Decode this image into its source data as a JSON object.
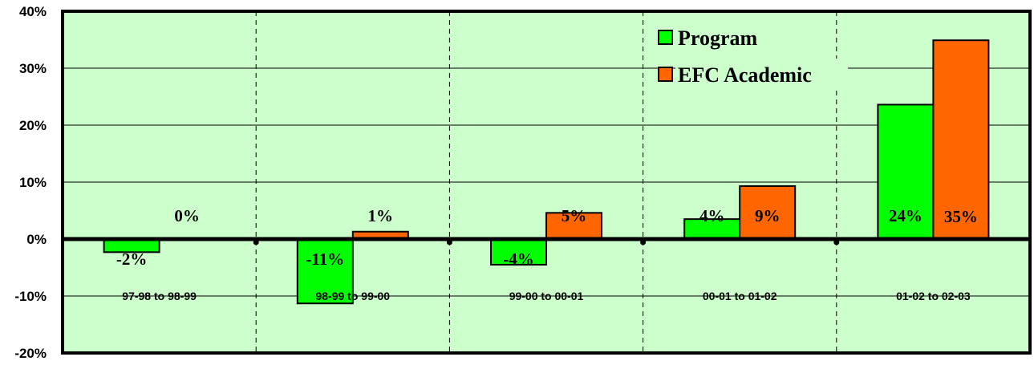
{
  "chart_data": {
    "type": "bar",
    "categories": [
      "97-98 to 98-99",
      "98-99 to 99-00",
      "99-00 to 00-01",
      "00-01 to 01-02",
      "01-02 to 02-03"
    ],
    "series": [
      {
        "name": "Program",
        "color": "#00ff00",
        "values": [
          -2.3,
          -11.3,
          -4.5,
          3.5,
          23.6
        ],
        "labels": [
          "-2%",
          "-11%",
          "-4%",
          "4%",
          "24%"
        ]
      },
      {
        "name": "EFC Academic",
        "color": "#ff6600",
        "values": [
          0,
          1.3,
          4.6,
          9.3,
          34.9
        ],
        "labels": [
          "0%",
          "1%",
          "5%",
          "9%",
          "35%"
        ]
      }
    ],
    "ylim": [
      -20,
      40
    ],
    "yticks": [
      40,
      30,
      20,
      10,
      0,
      -10,
      -20
    ],
    "ytick_labels": [
      "40%",
      "30%",
      "20%",
      "10%",
      "0%",
      "-10%",
      "-20%"
    ],
    "plot_background": "#ccffcc",
    "grid": true,
    "legend_position": "top-right"
  }
}
